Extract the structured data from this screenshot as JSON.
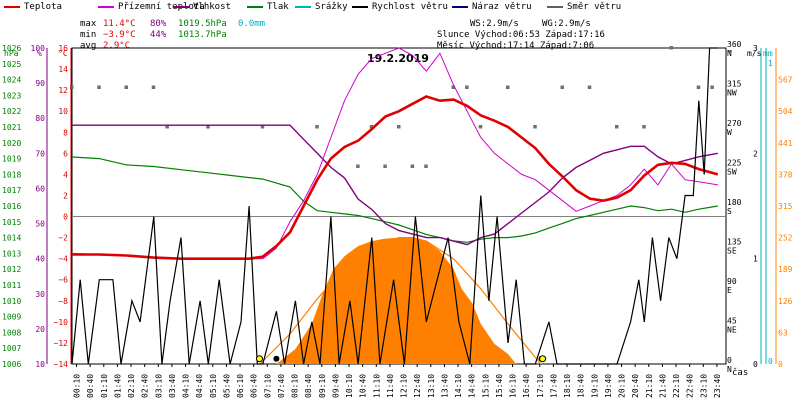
{
  "legend": [
    {
      "label": "Teplota",
      "color": "#e00000"
    },
    {
      "label": "Přízemní teplota",
      "color": "#d000d0"
    },
    {
      "label": "Vlhkost",
      "color": "#800080"
    },
    {
      "label": "Tlak",
      "color": "#008000"
    },
    {
      "label": "Srážky",
      "color": "#00b0c0"
    },
    {
      "label": "Rychlost větru",
      "color": "#000000"
    },
    {
      "label": "Náraz větru",
      "color": "#000080"
    },
    {
      "label": "Směr větru",
      "color": "#606060"
    }
  ],
  "stats": {
    "max_label": "max",
    "max_temp": "11.4°C",
    "max_hum": "80%",
    "max_press": "1019.5hPa",
    "max_rain": "0.0mm",
    "min_label": "min",
    "min_temp": "−3.9°C",
    "min_hum": "44%",
    "min_press": "1013.7hPa",
    "avg_label": "avg",
    "avg_temp": "2.9°C",
    "ws": "WS:2.9m/s",
    "wg": "WG:2.9m/s",
    "sun": "Slunce Východ:06:53  Západ:17:16",
    "moon": "Měsíc  Východ:17:14  Západ:7:06"
  },
  "chart_data": {
    "type": "line",
    "title": "19.2.2019",
    "xlabel": "čas",
    "axis_units": {
      "press": "hPa",
      "hum": "%",
      "temp": "°C",
      "dir": "°",
      "wind": "m/s",
      "rain": "mm",
      "sol": ""
    },
    "x_ticks": [
      "00:10",
      "00:40",
      "01:10",
      "01:40",
      "02:10",
      "02:40",
      "03:10",
      "03:40",
      "04:10",
      "04:40",
      "05:10",
      "05:40",
      "06:10",
      "06:40",
      "07:10",
      "07:40",
      "08:10",
      "08:40",
      "09:10",
      "09:40",
      "10:10",
      "10:40",
      "11:10",
      "11:40",
      "12:10",
      "12:40",
      "13:10",
      "13:40",
      "14:10",
      "14:40",
      "15:10",
      "15:40",
      "16:10",
      "16:40",
      "17:10",
      "17:40",
      "18:10",
      "18:40",
      "19:10",
      "19:40",
      "20:10",
      "20:40",
      "21:10",
      "21:40",
      "22:10",
      "22:40",
      "23:10",
      "23:40"
    ],
    "temp_axis": {
      "min": -14,
      "max": 16,
      "ticks": [
        "-14",
        "-12",
        "-10",
        "-8",
        "-6",
        "-4",
        "-2",
        "0",
        "2",
        "4",
        "6",
        "8",
        "10",
        "12",
        "14",
        "16"
      ]
    },
    "press_axis": {
      "ticks": [
        "1006",
        "1007",
        "1008",
        "1009",
        "1010",
        "1011",
        "1012",
        "1013",
        "1014",
        "1015",
        "1016",
        "1017",
        "1018",
        "1019",
        "1020",
        "1021",
        "1022",
        "1023",
        "1024",
        "1025",
        "1026"
      ]
    },
    "hum_axis": {
      "ticks": [
        "10",
        "20",
        "30",
        "40",
        "50",
        "60",
        "70",
        "80",
        "90",
        "100"
      ]
    },
    "dir_axis": {
      "ticks": [
        "0",
        "45",
        "90",
        "135",
        "180",
        "225",
        "270",
        "315",
        "360"
      ],
      "labels": [
        "N",
        "NE",
        "E",
        "SE",
        "S",
        "SW",
        "W",
        "NW",
        "N"
      ]
    },
    "wind_axis": {
      "ticks": [
        "0",
        "1",
        "2",
        "3"
      ]
    },
    "rain_axis": {
      "ticks": [
        "0",
        "1"
      ]
    },
    "solar_axis": {
      "ticks": [
        "0",
        "63",
        "126",
        "189",
        "252",
        "315",
        "378",
        "441",
        "504",
        "567"
      ]
    },
    "series": {
      "teplota": [
        [
          0,
          -3.6
        ],
        [
          1,
          -3.6
        ],
        [
          2,
          -3.7
        ],
        [
          3,
          -3.9
        ],
        [
          4,
          -4.0
        ],
        [
          5,
          -4.0
        ],
        [
          6,
          -4.0
        ],
        [
          6.5,
          -4.0
        ],
        [
          7,
          -3.8
        ],
        [
          7.5,
          -2.8
        ],
        [
          8,
          -1.5
        ],
        [
          8.5,
          1.0
        ],
        [
          9,
          3.5
        ],
        [
          9.5,
          5.5
        ],
        [
          10,
          6.6
        ],
        [
          10.5,
          7.2
        ],
        [
          11,
          8.3
        ],
        [
          11.5,
          9.5
        ],
        [
          12,
          10.0
        ],
        [
          12.5,
          10.7
        ],
        [
          13,
          11.4
        ],
        [
          13.5,
          11.0
        ],
        [
          14,
          11.1
        ],
        [
          14.5,
          10.5
        ],
        [
          15,
          9.6
        ],
        [
          15.5,
          9.1
        ],
        [
          16,
          8.5
        ],
        [
          16.5,
          7.5
        ],
        [
          17,
          6.5
        ],
        [
          17.5,
          5.0
        ],
        [
          18,
          3.8
        ],
        [
          18.5,
          2.5
        ],
        [
          19,
          1.7
        ],
        [
          19.5,
          1.5
        ],
        [
          20,
          1.8
        ],
        [
          20.5,
          2.5
        ],
        [
          21,
          3.9
        ],
        [
          21.5,
          4.9
        ],
        [
          22,
          5.1
        ],
        [
          22.5,
          5.0
        ],
        [
          23,
          4.5
        ],
        [
          23.7,
          4.0
        ]
      ],
      "prizemni": [
        [
          0,
          -3.5
        ],
        [
          2,
          -3.7
        ],
        [
          4,
          -4.0
        ],
        [
          6,
          -4.0
        ],
        [
          7,
          -4.0
        ],
        [
          7.5,
          -3.0
        ],
        [
          8,
          -0.5
        ],
        [
          8.5,
          1.5
        ],
        [
          9,
          4.0
        ],
        [
          9.5,
          7.5
        ],
        [
          10,
          11.0
        ],
        [
          10.5,
          13.5
        ],
        [
          11,
          15.0
        ],
        [
          11.5,
          15.5
        ],
        [
          12,
          16.0
        ],
        [
          12.5,
          15.3
        ],
        [
          13,
          13.8
        ],
        [
          13.5,
          15.5
        ],
        [
          14,
          12.5
        ],
        [
          14.5,
          10.0
        ],
        [
          15,
          7.5
        ],
        [
          15.5,
          6.0
        ],
        [
          16,
          5.0
        ],
        [
          16.5,
          4.0
        ],
        [
          17,
          3.5
        ],
        [
          17.5,
          2.5
        ],
        [
          18,
          1.5
        ],
        [
          18.5,
          0.5
        ],
        [
          19,
          1.0
        ],
        [
          19.5,
          1.5
        ],
        [
          20,
          2.0
        ],
        [
          20.5,
          3.0
        ],
        [
          21,
          4.5
        ],
        [
          21.5,
          3.0
        ],
        [
          22,
          5.0
        ],
        [
          22.5,
          3.5
        ],
        [
          23,
          3.3
        ],
        [
          23.7,
          3.0
        ]
      ],
      "vlhkost": [
        [
          0,
          78
        ],
        [
          3,
          78
        ],
        [
          6,
          78
        ],
        [
          8,
          78
        ],
        [
          8.5,
          74
        ],
        [
          9,
          70
        ],
        [
          9.5,
          66
        ],
        [
          10,
          63
        ],
        [
          10.5,
          57
        ],
        [
          11,
          54
        ],
        [
          11.5,
          50
        ],
        [
          12,
          48
        ],
        [
          12.5,
          47
        ],
        [
          13,
          46
        ],
        [
          13.5,
          46
        ],
        [
          14,
          45
        ],
        [
          14.5,
          44
        ],
        [
          15,
          46
        ],
        [
          15.5,
          47
        ],
        [
          16,
          50
        ],
        [
          16.5,
          53
        ],
        [
          17,
          56
        ],
        [
          17.5,
          59
        ],
        [
          18,
          63
        ],
        [
          18.5,
          66
        ],
        [
          19,
          68
        ],
        [
          19.5,
          70
        ],
        [
          20,
          71
        ],
        [
          20.5,
          72
        ],
        [
          21,
          72
        ],
        [
          21.5,
          69
        ],
        [
          22,
          67
        ],
        [
          22.5,
          68
        ],
        [
          23,
          69
        ],
        [
          23.7,
          70
        ]
      ],
      "tlak": [
        [
          0,
          1019.1
        ],
        [
          1,
          1019.0
        ],
        [
          2,
          1018.6
        ],
        [
          3,
          1018.5
        ],
        [
          4,
          1018.3
        ],
        [
          5,
          1018.1
        ],
        [
          6,
          1017.9
        ],
        [
          7,
          1017.7
        ],
        [
          8,
          1017.2
        ],
        [
          8.5,
          1016.3
        ],
        [
          9,
          1015.7
        ],
        [
          9.5,
          1015.6
        ],
        [
          10,
          1015.5
        ],
        [
          10.5,
          1015.4
        ],
        [
          11,
          1015.2
        ],
        [
          11.5,
          1015.0
        ],
        [
          12,
          1014.8
        ],
        [
          12.5,
          1014.5
        ],
        [
          13,
          1014.2
        ],
        [
          13.5,
          1014.0
        ],
        [
          14,
          1013.8
        ],
        [
          14.5,
          1013.7
        ],
        [
          15,
          1013.9
        ],
        [
          15.5,
          1014.0
        ],
        [
          16,
          1014.0
        ],
        [
          16.5,
          1014.1
        ],
        [
          17,
          1014.3
        ],
        [
          17.5,
          1014.6
        ],
        [
          18,
          1014.9
        ],
        [
          18.5,
          1015.2
        ],
        [
          19,
          1015.4
        ],
        [
          19.5,
          1015.6
        ],
        [
          20,
          1015.8
        ],
        [
          20.5,
          1016.0
        ],
        [
          21,
          1015.9
        ],
        [
          21.5,
          1015.7
        ],
        [
          22,
          1015.8
        ],
        [
          22.5,
          1015.6
        ],
        [
          23,
          1015.8
        ],
        [
          23.7,
          1016.0
        ]
      ],
      "vitr": [
        [
          0,
          0
        ],
        [
          0.3,
          0.8
        ],
        [
          0.6,
          0
        ],
        [
          1,
          0.8
        ],
        [
          1.5,
          0.8
        ],
        [
          1.8,
          0
        ],
        [
          2.2,
          0.6
        ],
        [
          2.5,
          0.4
        ],
        [
          3,
          1.4
        ],
        [
          3.3,
          0
        ],
        [
          3.6,
          0.6
        ],
        [
          4,
          1.2
        ],
        [
          4.3,
          0
        ],
        [
          4.7,
          0.6
        ],
        [
          5,
          0
        ],
        [
          5.4,
          0.8
        ],
        [
          5.8,
          0
        ],
        [
          6.2,
          0.4
        ],
        [
          6.5,
          1.5
        ],
        [
          6.8,
          0
        ],
        [
          7,
          0
        ],
        [
          7.5,
          0.5
        ],
        [
          7.8,
          0
        ],
        [
          8.2,
          0.6
        ],
        [
          8.5,
          0
        ],
        [
          8.8,
          0.4
        ],
        [
          9.1,
          0
        ],
        [
          9.5,
          1.4
        ],
        [
          9.8,
          0
        ],
        [
          10.2,
          0.6
        ],
        [
          10.5,
          0
        ],
        [
          11,
          1.2
        ],
        [
          11.3,
          0
        ],
        [
          11.8,
          0.8
        ],
        [
          12.2,
          0
        ],
        [
          12.6,
          1.4
        ],
        [
          13,
          0.4
        ],
        [
          13.4,
          0.8
        ],
        [
          13.8,
          1.2
        ],
        [
          14.2,
          0.4
        ],
        [
          14.6,
          0
        ],
        [
          15,
          1.6
        ],
        [
          15.3,
          0.6
        ],
        [
          15.6,
          1.4
        ],
        [
          16,
          0.2
        ],
        [
          16.3,
          0.8
        ],
        [
          16.6,
          0
        ],
        [
          17,
          0
        ],
        [
          17.5,
          0.4
        ],
        [
          17.8,
          0
        ],
        [
          18,
          0
        ],
        [
          19,
          0
        ],
        [
          20,
          0
        ],
        [
          20.5,
          0.4
        ],
        [
          20.8,
          0.8
        ],
        [
          21,
          0.4
        ],
        [
          21.3,
          1.2
        ],
        [
          21.6,
          0.6
        ],
        [
          21.9,
          1.2
        ],
        [
          22.2,
          1.0
        ],
        [
          22.5,
          1.6
        ],
        [
          22.8,
          1.6
        ],
        [
          23,
          2.5
        ],
        [
          23.2,
          1.8
        ],
        [
          23.4,
          3.0
        ],
        [
          23.7,
          3.0
        ]
      ],
      "slunce": [
        [
          6.9,
          0
        ],
        [
          8,
          60
        ],
        [
          9,
          130
        ],
        [
          10,
          190
        ],
        [
          11,
          230
        ],
        [
          12,
          252
        ],
        [
          12.5,
          252
        ],
        [
          13,
          245
        ],
        [
          14,
          210
        ],
        [
          15,
          150
        ],
        [
          16,
          80
        ],
        [
          17.2,
          0
        ]
      ],
      "radiace": [
        [
          7.5,
          0
        ],
        [
          8.2,
          30
        ],
        [
          8.8,
          80
        ],
        [
          9.2,
          140
        ],
        [
          9.6,
          190
        ],
        [
          10,
          215
        ],
        [
          10.5,
          235
        ],
        [
          11,
          245
        ],
        [
          11.5,
          250
        ],
        [
          12,
          252
        ],
        [
          12.5,
          252
        ],
        [
          13,
          245
        ],
        [
          13.5,
          225
        ],
        [
          14,
          190
        ],
        [
          14.3,
          150
        ],
        [
          14.7,
          120
        ],
        [
          15,
          80
        ],
        [
          15.5,
          40
        ],
        [
          16,
          20
        ],
        [
          16.3,
          0
        ]
      ],
      "smer_gray": [
        [
          0,
          315
        ],
        [
          1,
          315
        ],
        [
          2,
          315
        ],
        [
          3,
          315
        ],
        [
          3.5,
          270
        ],
        [
          5,
          270
        ],
        [
          7,
          270
        ],
        [
          9,
          270
        ],
        [
          10.5,
          225
        ],
        [
          11,
          270
        ],
        [
          11.5,
          225
        ],
        [
          12,
          270
        ],
        [
          12.5,
          225
        ],
        [
          13,
          225
        ],
        [
          14,
          315
        ],
        [
          14.5,
          315
        ],
        [
          15,
          270
        ],
        [
          16,
          315
        ],
        [
          17,
          270
        ],
        [
          18,
          315
        ],
        [
          19,
          315
        ],
        [
          20,
          270
        ],
        [
          21,
          270
        ],
        [
          22,
          360
        ],
        [
          23,
          315
        ],
        [
          23.5,
          315
        ]
      ]
    }
  }
}
